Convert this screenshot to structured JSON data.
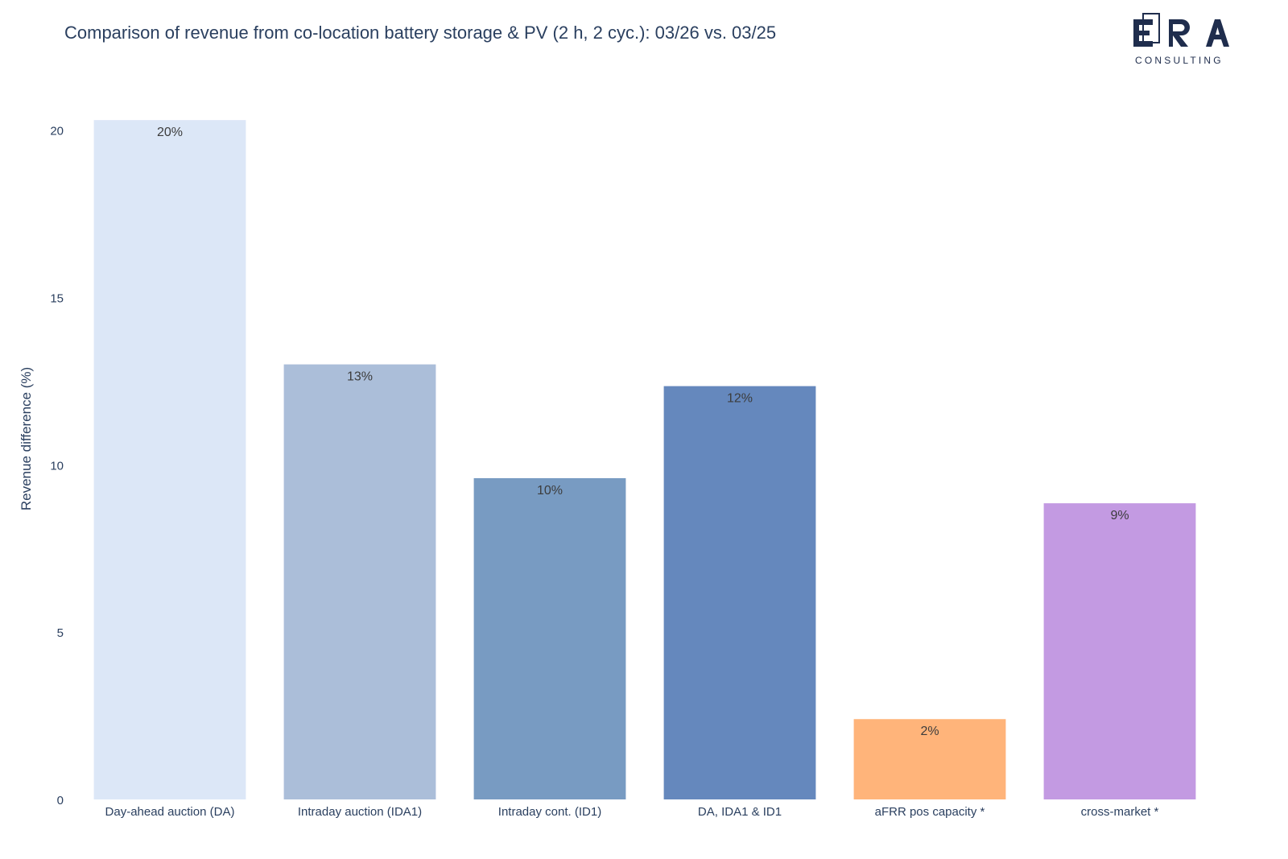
{
  "header": {
    "title": "Comparison of revenue from co-location battery storage & PV (2 h, 2 cyc.): 03/26 vs. 03/25"
  },
  "logo": {
    "text": "ERA",
    "subtext": "CONSULTING",
    "color": "#1f2d4d"
  },
  "chart_data": {
    "type": "bar",
    "title": "Comparison of revenue from co-location battery storage & PV (2 h, 2 cyc.): 03/26 vs. 03/25",
    "xlabel": "",
    "ylabel": "Revenue difference (%)",
    "ylim": [
      0,
      20.4
    ],
    "yticks": [
      0,
      5,
      10,
      15,
      20
    ],
    "grid": false,
    "categories": [
      "Day-ahead auction (DA)",
      "Intraday auction (IDA1)",
      "Intraday cont. (ID1)",
      "DA, IDA1 & ID1",
      "aFRR pos capacity *",
      "cross-market *"
    ],
    "values": [
      20.3,
      13.0,
      9.6,
      12.35,
      2.4,
      8.85
    ],
    "data_labels": [
      "20%",
      "13%",
      "10%",
      "12%",
      "2%",
      "9%"
    ],
    "colors": [
      "#dce7f7",
      "#abbed9",
      "#789bc2",
      "#6588bd",
      "#ffb47a",
      "#c39ae2"
    ]
  }
}
